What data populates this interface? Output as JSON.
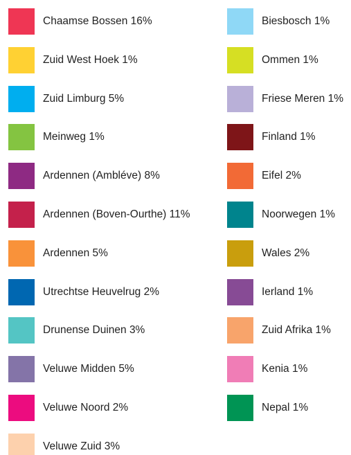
{
  "legend": {
    "columns": [
      {
        "items": [
          {
            "label": "Chaamse Bossen 16%",
            "color": "#ef3654"
          },
          {
            "label": "Zuid West Hoek 1%",
            "color": "#ffd133"
          },
          {
            "label": "Zuid Limburg 5%",
            "color": "#00aeef"
          },
          {
            "label": "Meinweg 1%",
            "color": "#84c441"
          },
          {
            "label": "Ardennen (Ambléve) 8%",
            "color": "#8e2a83"
          },
          {
            "label": "Ardennen (Boven-Ourthe) 11%",
            "color": "#c4214b"
          },
          {
            "label": "Ardennen 5%",
            "color": "#f9923a"
          },
          {
            "label": "Utrechtse Heuvelrug 2%",
            "color": "#0067b1"
          },
          {
            "label": "Drunense Duinen 3%",
            "color": "#54c5c4"
          },
          {
            "label": "Veluwe Midden 5%",
            "color": "#8474a8"
          },
          {
            "label": "Veluwe Noord 2%",
            "color": "#ec0c7f"
          },
          {
            "label": "Veluwe Zuid 3%",
            "color": "#fdd1ad"
          }
        ]
      },
      {
        "items": [
          {
            "label": "Biesbosch 1%",
            "color": "#8fd8f6"
          },
          {
            "label": "Ommen 1%",
            "color": "#d6df23"
          },
          {
            "label": "Friese Meren 1%",
            "color": "#b9b0d8"
          },
          {
            "label": "Finland 1%",
            "color": "#7e1518"
          },
          {
            "label": "Eifel 2%",
            "color": "#f26a36"
          },
          {
            "label": "Noorwegen 1%",
            "color": "#00848d"
          },
          {
            "label": "Wales 2%",
            "color": "#c99e0d"
          },
          {
            "label": "Ierland 1%",
            "color": "#874b95"
          },
          {
            "label": "Zuid Afrika 1%",
            "color": "#f8a46b"
          },
          {
            "label": "Kenia 1%",
            "color": "#f07db6"
          },
          {
            "label": "Nepal 1%",
            "color": "#009454"
          }
        ]
      }
    ]
  }
}
